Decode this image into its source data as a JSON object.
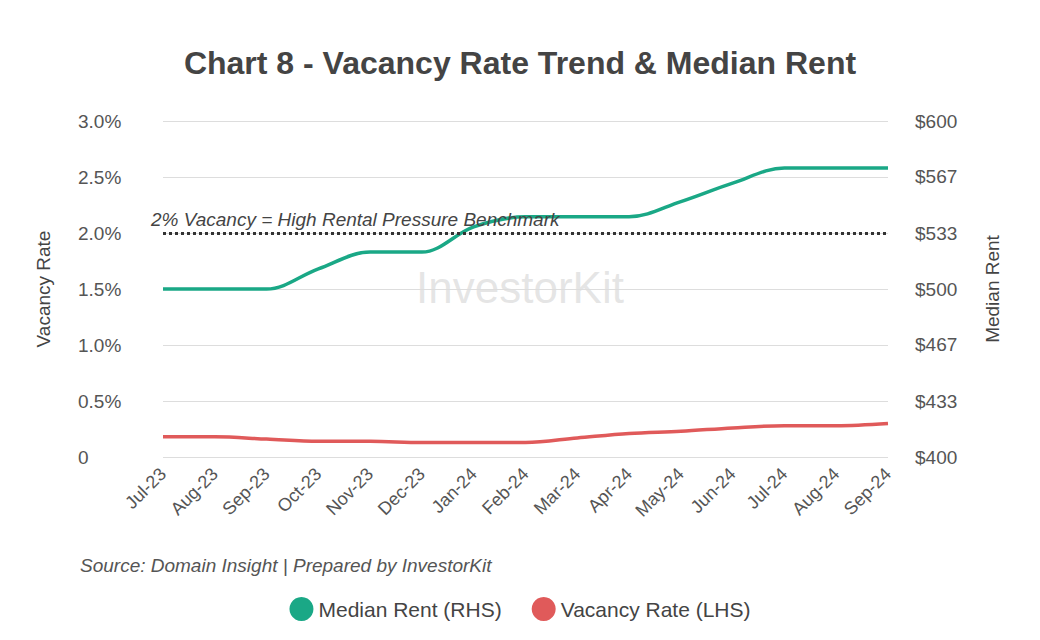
{
  "chart_data": {
    "type": "line",
    "title": "Chart 8 - Vacancy Rate Trend & Median Rent",
    "source": "Source: Domain Insight | Prepared by InvestorKit",
    "watermark": "InvestorKit",
    "y_label": "Vacancy Rate",
    "y2_label": "Median Rent",
    "categories": [
      "Jul-23",
      "Aug-23",
      "Sep-23",
      "Oct-23",
      "Nov-23",
      "Dec-23",
      "Jan-24",
      "Feb-24",
      "Mar-24",
      "Apr-24",
      "May-24",
      "Jun-24",
      "Jul-24",
      "Aug-24",
      "Sep-24"
    ],
    "series": [
      {
        "name": "Median Rent (RHS)",
        "color": "#1aa886",
        "axis": "y2",
        "values": [
          500,
          500,
          500,
          512,
          522,
          522,
          537,
          543,
          543,
          543,
          552,
          563,
          572,
          572,
          572
        ]
      },
      {
        "name": "Vacancy Rate (LHS)",
        "color": "#e05a5a",
        "axis": "y",
        "values": [
          0.18,
          0.18,
          0.16,
          0.14,
          0.14,
          0.13,
          0.13,
          0.13,
          0.17,
          0.21,
          0.23,
          0.26,
          0.28,
          0.28,
          0.3
        ]
      }
    ],
    "ylim": [
      0,
      3
    ],
    "yticks": [
      0,
      {
        "value": 0.5,
        "label": "0.5%"
      },
      {
        "value": 1,
        "label": "1.0%"
      },
      {
        "value": 1.5,
        "label": "1.5%"
      },
      {
        "value": 2,
        "label": "2.0%"
      },
      {
        "value": 2.5,
        "label": "2.5%"
      },
      {
        "value": 3,
        "label": "3.0%"
      }
    ],
    "y2lim": [
      400,
      600
    ],
    "y2ticks": [
      {
        "value": 400,
        "label": "$400"
      },
      {
        "value": 433.33,
        "label": "$433"
      },
      {
        "value": 466.67,
        "label": "$467"
      },
      {
        "value": 500,
        "label": "$500"
      },
      {
        "value": 533.33,
        "label": "$533"
      },
      {
        "value": 566.67,
        "label": "$567"
      },
      {
        "value": 600,
        "label": "$600"
      }
    ],
    "annotations": [
      {
        "text": "2% Vacancy = High Rental Pressure Benchmark",
        "y": 2,
        "axis": "y"
      }
    ],
    "grid": true,
    "legend": "bottom"
  }
}
